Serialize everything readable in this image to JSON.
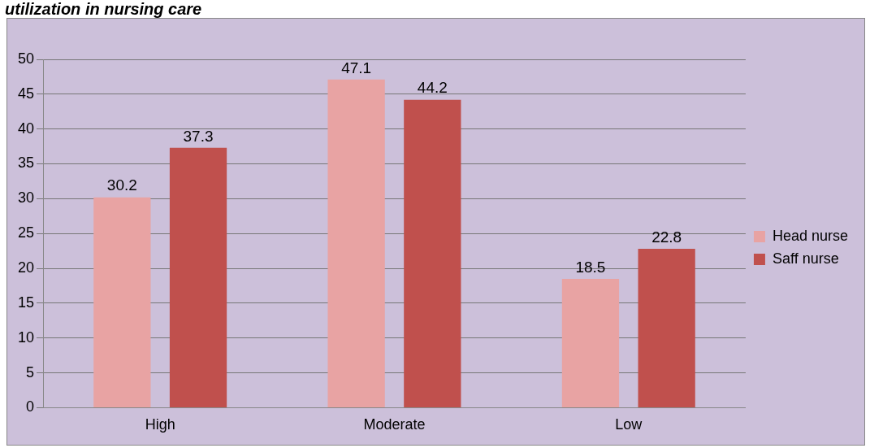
{
  "chart_data": {
    "type": "bar",
    "title": "utilization in nursing care",
    "categories": [
      "High",
      "Moderate",
      "Low"
    ],
    "series": [
      {
        "name": "Head nurse",
        "color": "#e8a3a3",
        "values": [
          30.2,
          47.1,
          18.5
        ]
      },
      {
        "name": "Saff nurse",
        "color": "#c0504d",
        "values": [
          37.3,
          44.2,
          22.8
        ]
      }
    ],
    "ylim": [
      0,
      50
    ],
    "yticks": [
      0,
      5,
      10,
      15,
      20,
      25,
      30,
      35,
      40,
      45,
      50
    ],
    "grid": "y",
    "legend": "right",
    "data_labels": true
  }
}
